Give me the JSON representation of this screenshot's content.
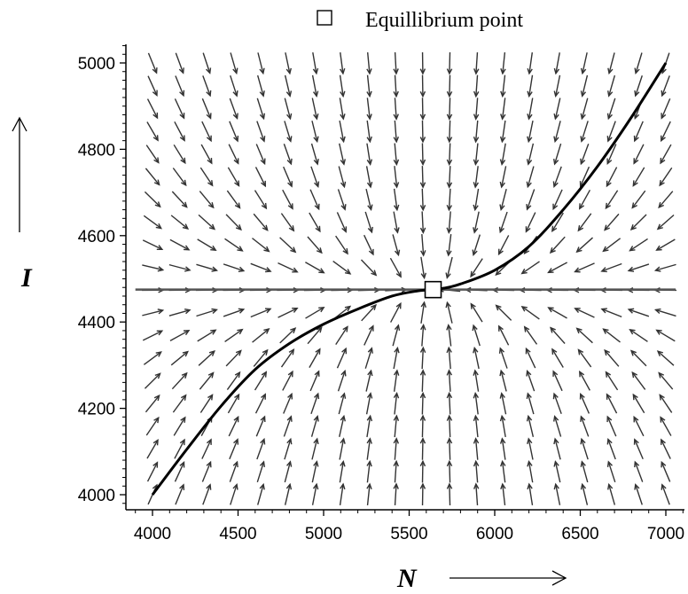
{
  "chart_data": {
    "type": "scatter",
    "title": "",
    "legend": {
      "entries": [
        "Equillibrium point"
      ],
      "placement": "top"
    },
    "xlabel": "N",
    "ylabel": "I",
    "xlim": [
      3900,
      7100
    ],
    "ylim": [
      3970,
      5050
    ],
    "xticks": [
      4000,
      4500,
      5000,
      5500,
      6000,
      6500,
      7000
    ],
    "yticks": [
      4000,
      4200,
      4400,
      4600,
      4800,
      5000
    ],
    "equilibrium": {
      "N": 5640,
      "I": 4475
    },
    "vector_field": {
      "N_range": [
        4000,
        7000
      ],
      "I_range": [
        4000,
        5000
      ],
      "columns": 20,
      "rows": 20
    },
    "separatrix_horizontal": {
      "I": 4475,
      "N_range": [
        3900,
        7100
      ]
    },
    "separatrix_curve": [
      [
        4000,
        4000
      ],
      [
        4200,
        4105
      ],
      [
        4400,
        4205
      ],
      [
        4600,
        4290
      ],
      [
        4800,
        4350
      ],
      [
        5000,
        4395
      ],
      [
        5200,
        4430
      ],
      [
        5400,
        4460
      ],
      [
        5550,
        4472
      ],
      [
        5640,
        4475
      ],
      [
        5700,
        4478
      ],
      [
        5800,
        4488
      ],
      [
        6000,
        4520
      ],
      [
        6200,
        4575
      ],
      [
        6400,
        4660
      ],
      [
        6600,
        4760
      ],
      [
        6800,
        4875
      ],
      [
        7000,
        5000
      ]
    ]
  }
}
